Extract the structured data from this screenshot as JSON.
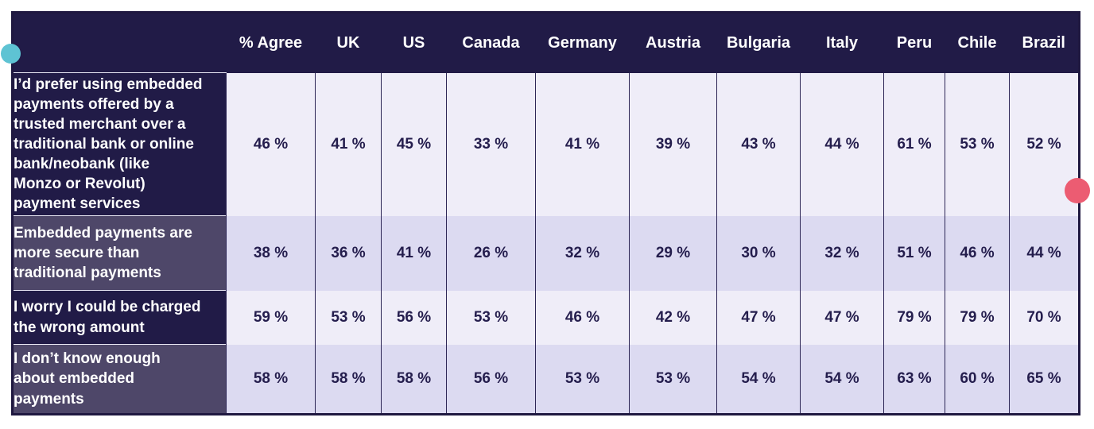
{
  "chart_data": {
    "type": "table",
    "title": "",
    "value_suffix": " %",
    "columns": [
      "% Agree",
      "UK",
      "US",
      "Canada",
      "Germany",
      "Austria",
      "Bulgaria",
      "Italy",
      "Peru",
      "Chile",
      "Brazil"
    ],
    "rows": [
      {
        "label": "I’d prefer using embedded\npayments offered by a\ntrusted merchant over a\ntraditional bank or online\nbank/neobank (like\nMonzo or Revolut)\npayment services",
        "values": [
          46,
          41,
          45,
          33,
          41,
          39,
          43,
          44,
          61,
          53,
          52
        ]
      },
      {
        "label": "Embedded payments are\nmore secure than\ntraditional payments",
        "values": [
          38,
          36,
          41,
          26,
          32,
          29,
          30,
          32,
          51,
          46,
          44
        ]
      },
      {
        "label": "I worry I could be charged\nthe wrong amount",
        "values": [
          59,
          53,
          56,
          53,
          46,
          42,
          47,
          47,
          79,
          79,
          70
        ]
      },
      {
        "label": "I don’t know enough\nabout embedded\npayments",
        "values": [
          58,
          58,
          58,
          56,
          53,
          53,
          54,
          54,
          63,
          60,
          65
        ]
      }
    ],
    "layout": {
      "grid": "vertical-lines-only",
      "striped_rows": true
    }
  },
  "colors": {
    "header_bg": "#211b47",
    "label_dark_bg": "#211b47",
    "label_muted_bg": "#4e4769",
    "cell_light_bg": "#efedf8",
    "cell_tint_bg": "#dcdaf1",
    "cell_text": "#241d4d",
    "header_text": "#ffffff",
    "grid_line": "#2d2656",
    "accent_teal": "#5ec3d3",
    "accent_pink": "#ec5c72"
  }
}
